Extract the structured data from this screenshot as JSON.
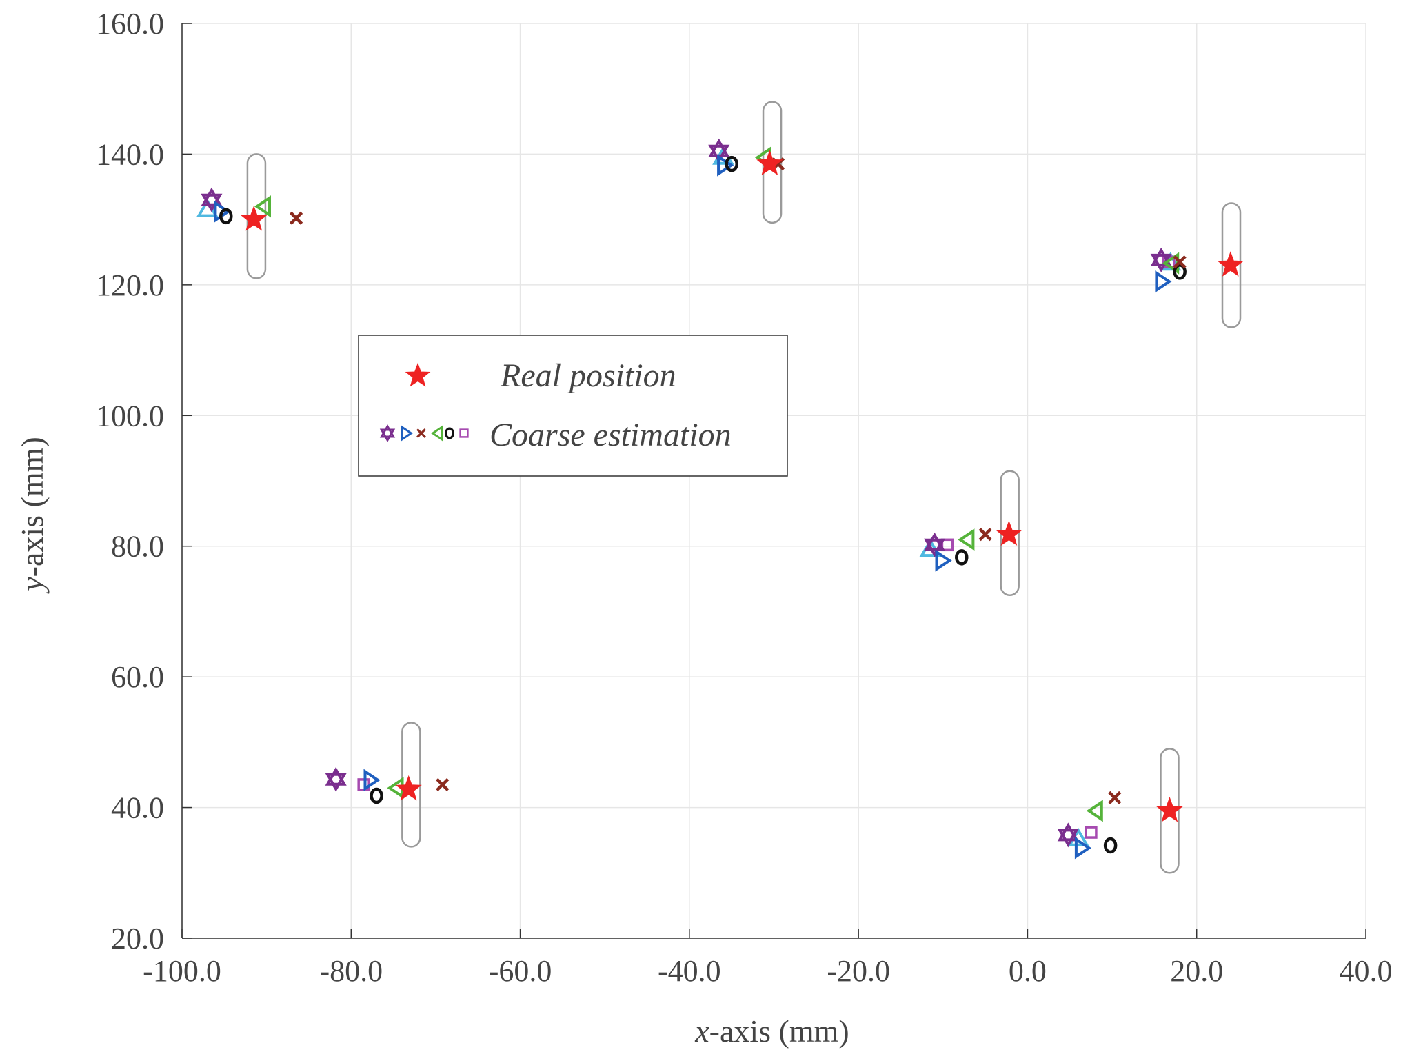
{
  "chart_data": {
    "type": "scatter",
    "xlabel_var": "x",
    "xlabel_rest": "-axis (mm)",
    "ylabel_var": "y",
    "ylabel_rest": "-axis (mm)",
    "xlim": [
      -100,
      40
    ],
    "ylim": [
      20,
      160
    ],
    "xticks": [
      -100,
      -80,
      -60,
      -40,
      -20,
      0,
      20,
      40
    ],
    "yticks": [
      20,
      40,
      60,
      80,
      100,
      120,
      140,
      160
    ],
    "xtick_labels": [
      "-100.0",
      "-80.0",
      "-60.0",
      "-40.0",
      "-20.0",
      "0.0",
      "20.0",
      "40.0"
    ],
    "ytick_labels": [
      "20.0",
      "40.0",
      "60.0",
      "80.0",
      "100.0",
      "120.0",
      "140.0",
      "160.0"
    ],
    "grid": true,
    "legend": {
      "position": "center-left",
      "entries": [
        {
          "label": "Real position",
          "markers": [
            "star"
          ]
        },
        {
          "label": "Coarse estimation",
          "markers": [
            "hexagram",
            "triangle-right",
            "x",
            "triangle-left",
            "circle",
            "square"
          ]
        }
      ]
    },
    "colors": {
      "real": "#ee2222",
      "hexagram": "#7a2e8e",
      "triangle_right": "#1f5fbf",
      "x": "#8b2a1e",
      "triangle_left": "#55b33a",
      "circle": "#111111",
      "square": "#a64ab0",
      "triangle_up": "#4fb8e0",
      "capsule": "#9a9a9a"
    },
    "series": [
      {
        "name": "Real position",
        "marker": "star",
        "points": [
          [
            -91.5,
            130.0
          ],
          [
            -30.5,
            138.5
          ],
          [
            24.0,
            123.0
          ],
          [
            -2.2,
            81.8
          ],
          [
            -73.2,
            42.8
          ],
          [
            16.8,
            39.5
          ]
        ]
      },
      {
        "name": "Coarse estimation 1",
        "marker": "hexagram",
        "points": [
          [
            -96.5,
            133.0
          ],
          [
            -36.5,
            140.5
          ],
          [
            15.8,
            123.8
          ],
          [
            -11.0,
            80.2
          ],
          [
            -81.8,
            44.3
          ],
          [
            4.8,
            35.8
          ]
        ]
      },
      {
        "name": "Coarse estimation 2",
        "marker": "triangle-right",
        "points": [
          [
            -95.5,
            131.2
          ],
          [
            -36.0,
            138.3
          ],
          [
            15.8,
            120.5
          ],
          [
            -10.2,
            77.8
          ],
          [
            -77.8,
            44.2
          ],
          [
            6.3,
            33.8
          ]
        ]
      },
      {
        "name": "Coarse estimation 3",
        "marker": "x",
        "points": [
          [
            -86.5,
            130.2
          ],
          [
            -29.5,
            138.5
          ],
          [
            18.0,
            123.5
          ],
          [
            -5.0,
            81.8
          ],
          [
            -69.2,
            43.5
          ],
          [
            10.3,
            41.5
          ]
        ]
      },
      {
        "name": "Coarse estimation 4",
        "marker": "triangle-left",
        "points": [
          [
            -90.2,
            132.0
          ],
          [
            -31.0,
            139.5
          ],
          [
            17.2,
            123.3
          ],
          [
            -7.0,
            81.0
          ],
          [
            -74.5,
            43.0
          ],
          [
            8.2,
            39.5
          ]
        ]
      },
      {
        "name": "Coarse estimation 5",
        "marker": "circle",
        "points": [
          [
            -94.8,
            130.5
          ],
          [
            -35.0,
            138.5
          ],
          [
            18.0,
            122.0
          ],
          [
            -7.8,
            78.3
          ],
          [
            -77.0,
            41.8
          ],
          [
            9.8,
            34.2
          ]
        ]
      },
      {
        "name": "Coarse estimation 6",
        "marker": "square",
        "points": [
          [
            -9.5,
            80.2
          ],
          [
            -78.5,
            43.5
          ],
          [
            7.5,
            36.2
          ],
          [
            16.7,
            123.5
          ]
        ]
      },
      {
        "name": "Coarse estimation 7",
        "marker": "triangle-up",
        "points": [
          [
            -97.0,
            131.5
          ],
          [
            -36.0,
            139.5
          ],
          [
            16.9,
            123.3
          ],
          [
            6.0,
            35.2
          ],
          [
            -11.5,
            79.5
          ]
        ]
      }
    ],
    "capsules": [
      {
        "x": -91.2,
        "ymin": 121.0,
        "ymax": 140.0
      },
      {
        "x": -30.2,
        "ymin": 129.5,
        "ymax": 148.0
      },
      {
        "x": 24.1,
        "ymin": 113.5,
        "ymax": 132.5
      },
      {
        "x": -2.1,
        "ymin": 72.5,
        "ymax": 91.5
      },
      {
        "x": -72.9,
        "ymin": 34.0,
        "ymax": 53.0
      },
      {
        "x": 16.8,
        "ymin": 30.0,
        "ymax": 49.0
      }
    ]
  }
}
